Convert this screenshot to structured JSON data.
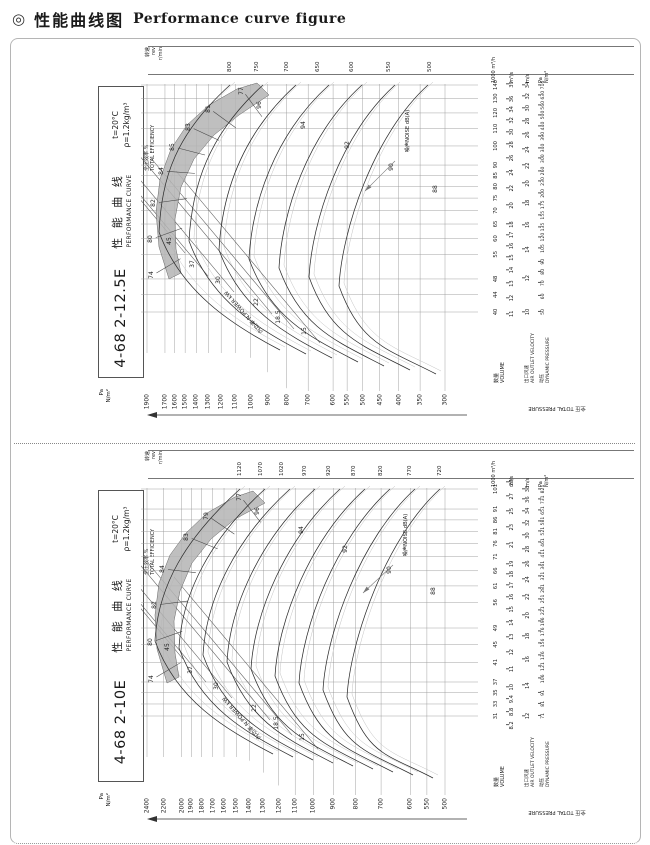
{
  "page": {
    "bullet": "◎",
    "title_cn": "性能曲线图",
    "title_en": "Performance curve figure"
  },
  "chart_data": [
    {
      "type": "line",
      "model": "4-68 2-12.5E",
      "title_cn": "性 能 曲 线",
      "title_en": "PERFORMANCE CURVE",
      "condition_temp": "t=20°C",
      "condition_density": "ρ=1.2kg/m³",
      "xlabel": "数量 VOLUME (1000 m³/h)",
      "ylabel": "全压 TOTAL PRESSURE (Pa N/m²)",
      "speed_label_cn": "转速",
      "speed_label_en": "rev",
      "speed_unit": "r/min",
      "speed_values": [
        800,
        750,
        700,
        650,
        600,
        550,
        500
      ],
      "pressure_unit_1": "Pa",
      "pressure_unit_2": "N/m²",
      "pressure_values": [
        1900,
        1700,
        1600,
        1500,
        1400,
        1300,
        1200,
        1100,
        1000,
        900,
        800,
        700,
        600,
        550,
        500,
        450,
        400,
        350,
        300
      ],
      "pressure_axis_label": "全压 TOTAL PRESSURE",
      "efficiency_label_cn": "全压效率 %",
      "efficiency_label_en": "TOTAL EFFICIENCY",
      "efficiency_values": [
        77,
        81,
        83,
        85,
        84,
        82,
        80,
        74
      ],
      "power_label": "内功率 N.POWER kW",
      "power_values": [
        45,
        37,
        30,
        22,
        18.5,
        15
      ],
      "noise_label": "噪声NOISE dB(A)",
      "noise_values": [
        96,
        94,
        92,
        90,
        88
      ],
      "volume_label_cn": "数量",
      "volume_label_en": "VOLUME",
      "volume_m3h_values": [
        40,
        44,
        48,
        55,
        60,
        65,
        70,
        75,
        80,
        85,
        90,
        100,
        110,
        120,
        130,
        140
      ],
      "volume_m3h_unit": "1000 m³/h",
      "volume_m3s_values": [
        11,
        12,
        13,
        14,
        15,
        16,
        17,
        18,
        20,
        22,
        24,
        26,
        28,
        30,
        32,
        34,
        36,
        39
      ],
      "volume_m3s_unit": "m³/s",
      "velocity_label_cn": "出口风速",
      "velocity_label_en": "AIR OUTLET VELOCITY",
      "velocity_values": [
        10,
        12,
        14,
        16,
        18,
        20,
        22,
        24,
        26,
        28,
        30,
        32,
        34
      ],
      "velocity_unit": "m/s",
      "dynamic_label_cn": "动压",
      "dynamic_label_en": "DYNAMIC PRESSURE",
      "dynamic_values": [
        50,
        60,
        70,
        80,
        90,
        105,
        120,
        135,
        155,
        175,
        200,
        230,
        260,
        300,
        340,
        390,
        440,
        500,
        560,
        630,
        710
      ],
      "dynamic_unit_1": "Pa",
      "dynamic_unit_2": "N/m²"
    },
    {
      "type": "line",
      "model": "4-68 2-10E",
      "title_cn": "性 能 曲 线",
      "title_en": "PERFORMANCE CURVE",
      "condition_temp": "t=20°C",
      "condition_density": "ρ=1.2kg/m³",
      "xlabel": "数量 VOLUME (1000 m³/h)",
      "ylabel": "全压 TOTAL PRESSURE (Pa N/m²)",
      "speed_label_cn": "转速",
      "speed_label_en": "rev",
      "speed_unit": "r/min",
      "speed_values": [
        1120,
        1070,
        1020,
        970,
        920,
        870,
        820,
        770,
        720
      ],
      "pressure_unit_1": "Pa",
      "pressure_unit_2": "N/m²",
      "pressure_values": [
        2400,
        2200,
        2000,
        1900,
        1800,
        1700,
        1600,
        1500,
        1400,
        1300,
        1200,
        1100,
        1000,
        900,
        800,
        700,
        600,
        550,
        500
      ],
      "pressure_axis_label": "全压 TOTAL PRESSURE",
      "efficiency_label_cn": "全压效率 %",
      "efficiency_label_en": "TOTAL EFFICIENCY",
      "efficiency_values": [
        77,
        79,
        83,
        84,
        82,
        80,
        74
      ],
      "power_label": "内功率 N.POWER kW",
      "power_values": [
        45,
        37,
        30,
        22,
        18.5,
        15
      ],
      "noise_label": "噪声NOISE dB(A)",
      "noise_values": [
        96,
        94,
        92,
        90,
        88
      ],
      "volume_label_cn": "数量",
      "volume_label_en": "VOLUME",
      "volume_m3h_values": [
        31,
        33,
        35,
        37,
        41,
        45,
        49,
        56,
        61,
        66,
        71,
        76,
        81,
        86,
        91,
        101
      ],
      "volume_m3h_unit": "1000 m³/h",
      "volume_m3s_values": [
        8.2,
        8.8,
        9.4,
        10,
        11,
        12,
        13,
        14,
        15,
        16,
        17,
        18,
        19,
        21,
        23,
        25,
        27,
        29
      ],
      "volume_m3s_unit": "m³/s",
      "velocity_label_cn": "出口风速",
      "velocity_label_en": "AIR OUTLET VELOCITY",
      "velocity_values": [
        12,
        14,
        16,
        18,
        20,
        22,
        24,
        26,
        28,
        30,
        32,
        34,
        36,
        38
      ],
      "velocity_unit": "m/s",
      "dynamic_label_cn": "动压",
      "dynamic_label_en": "DYNAMIC PRESSURE",
      "dynamic_values": [
        71,
        81,
        91,
        106,
        121,
        136,
        156,
        176,
        196,
        221,
        251,
        281,
        321,
        361,
        411,
        461,
        521,
        581,
        651,
        731,
        821
      ],
      "dynamic_unit_1": "Pa",
      "dynamic_unit_2": "N/m²"
    }
  ]
}
